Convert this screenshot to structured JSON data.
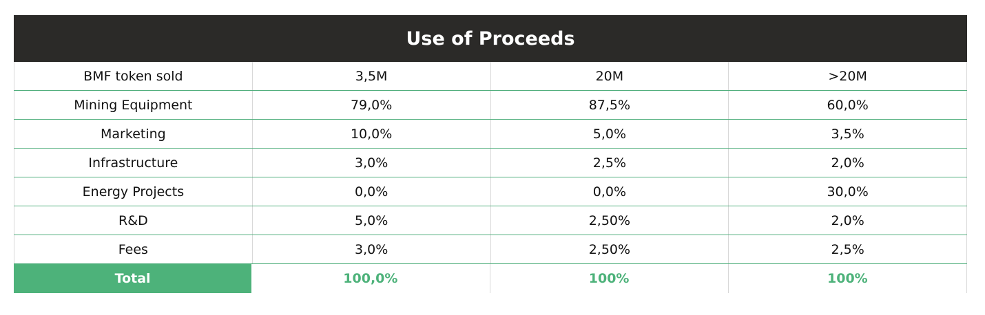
{
  "table": {
    "title": "Use of Proceeds",
    "rows": [
      {
        "label": "BMF token sold",
        "values": [
          "3,5M",
          "20M",
          ">20M"
        ]
      },
      {
        "label": "Mining Equipment",
        "values": [
          "79,0%",
          "87,5%",
          "60,0%"
        ]
      },
      {
        "label": "Marketing",
        "values": [
          "10,0%",
          "5,0%",
          "3,5%"
        ]
      },
      {
        "label": "Infrastructure",
        "values": [
          "3,0%",
          "2,5%",
          "2,0%"
        ]
      },
      {
        "label": "Energy Projects",
        "values": [
          "0,0%",
          "0,0%",
          "30,0%"
        ]
      },
      {
        "label": "R&D",
        "values": [
          "5,0%",
          "2,50%",
          "2,0%"
        ]
      },
      {
        "label": "Fees",
        "values": [
          "3,0%",
          "2,50%",
          "2,5%"
        ]
      }
    ],
    "total": {
      "label": "Total",
      "values": [
        "100,0%",
        "100%",
        "100%"
      ]
    }
  },
  "colors": {
    "header_bg": "#2b2a28",
    "accent_green": "#4db27a",
    "row_divider": "#4fae7c"
  }
}
